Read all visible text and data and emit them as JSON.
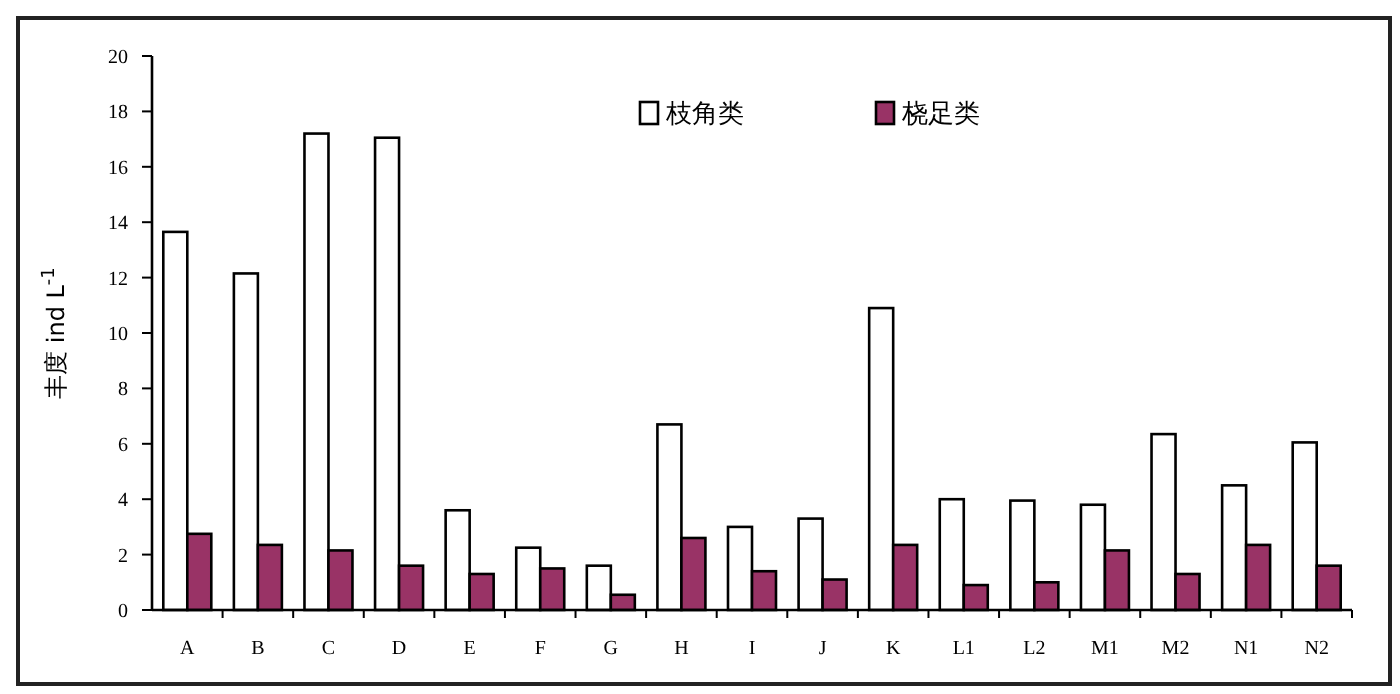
{
  "chart_data": {
    "type": "bar",
    "ylabel": "丰度  ind L$^{-1}$",
    "categories": [
      "A",
      "B",
      "C",
      "D",
      "E",
      "F",
      "G",
      "H",
      "I",
      "J",
      "K",
      "L1",
      "L2",
      "M1",
      "M2",
      "N1",
      "N2"
    ],
    "series": [
      {
        "name": "枝角类",
        "color": "#ffffff",
        "values": [
          13.65,
          12.15,
          17.2,
          17.05,
          3.6,
          2.25,
          1.6,
          6.7,
          3.0,
          3.3,
          10.9,
          4.0,
          3.95,
          3.8,
          6.35,
          4.5,
          6.05
        ]
      },
      {
        "name": "桡足类",
        "color": "#993366",
        "values": [
          2.75,
          2.35,
          2.15,
          1.6,
          1.3,
          1.5,
          0.55,
          2.6,
          1.4,
          1.1,
          2.35,
          0.9,
          1.0,
          2.15,
          1.3,
          2.35,
          1.6
        ]
      }
    ],
    "ylim": [
      0,
      20
    ],
    "yticks": [
      0,
      2,
      4,
      6,
      8,
      10,
      12,
      14,
      16,
      18,
      20
    ],
    "grid": false,
    "legend": "top"
  }
}
